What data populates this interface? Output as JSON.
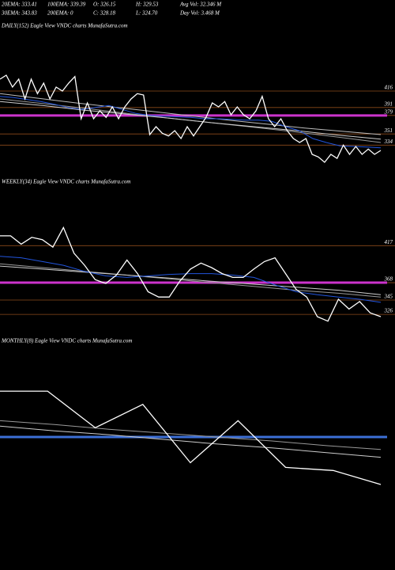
{
  "header": {
    "rows": [
      [
        "20EMA: 333.41",
        "100EMA: 339.39",
        "O: 326.15",
        "H: 329.53",
        "Avg Vol: 32.346 M"
      ],
      [
        "30EMA: 343.83",
        "200EMA: 0",
        "C: 328.18",
        "L: 324.70",
        "Day Vol: 3.468 M"
      ]
    ]
  },
  "chart_data": [
    {
      "type": "line",
      "title": "DAILY(152) Eagle  View  VNDC charts MunafaSutra.com",
      "ylim": [
        302,
        500
      ],
      "yticks": [
        416,
        391,
        379,
        351,
        334
      ],
      "tick_line_color": "#8b4a1a",
      "hlines": [
        {
          "value": 379,
          "color": "#cc33cc"
        }
      ],
      "series": [
        {
          "color": "#bbbbbb",
          "values": [
            412,
            398,
            385,
            372,
            360,
            350
          ]
        },
        {
          "color": "#999999",
          "values": [
            404,
            397,
            390,
            382,
            375,
            368,
            361,
            354,
            346,
            338
          ]
        },
        {
          "color": "#cccccc",
          "values": [
            400,
            394,
            387,
            381,
            375,
            368,
            362,
            356,
            349,
            343
          ]
        },
        {
          "color": "#2255dd",
          "values": [
            408,
            406,
            403,
            400,
            396,
            391,
            388,
            391,
            394,
            388,
            382,
            379,
            378,
            377,
            376,
            374,
            374,
            373,
            372,
            372,
            370,
            362,
            356,
            344,
            338,
            333,
            332,
            331,
            330
          ]
        },
        {
          "color": "#ffffff",
          "values": [
            434,
            440,
            422,
            434,
            404,
            434,
            412,
            428,
            404,
            422,
            416,
            428,
            438,
            374,
            398,
            374,
            386,
            376,
            392,
            374,
            392,
            404,
            412,
            410,
            350,
            362,
            352,
            348,
            356,
            344,
            362,
            348,
            362,
            376,
            398,
            392,
            400,
            380,
            392,
            380,
            374,
            386,
            408,
            374,
            362,
            374,
            356,
            344,
            338,
            344,
            320,
            316,
            308,
            320,
            314,
            334,
            320,
            332,
            320,
            328,
            320,
            326
          ]
        }
      ]
    },
    {
      "type": "line",
      "title": "WEEKLY(34) Eagle  View  VNDC charts MunafaSutra.com",
      "ylim": [
        302,
        496
      ],
      "yticks": [
        417,
        368,
        345,
        326
      ],
      "tick_line_color": "#8b4a1a",
      "hlines": [
        {
          "value": 368,
          "color": "#cc33cc"
        }
      ],
      "series": [
        {
          "color": "#999999",
          "values": [
            393,
            388,
            383,
            378,
            373,
            368,
            363,
            358,
            354,
            349
          ]
        },
        {
          "color": "#cccccc",
          "values": [
            390,
            386,
            382,
            378,
            374,
            370,
            366,
            362,
            358,
            352
          ]
        },
        {
          "color": "#2255dd",
          "values": [
            403,
            401,
            396,
            391,
            383,
            377,
            375,
            377,
            379,
            380,
            380,
            378,
            375,
            365,
            356,
            352,
            349,
            346,
            342
          ]
        },
        {
          "color": "#ffffff",
          "values": [
            430,
            430,
            419,
            428,
            425,
            415,
            441,
            407,
            391,
            372,
            367,
            378,
            398,
            380,
            356,
            349,
            349,
            370,
            386,
            394,
            388,
            380,
            375,
            375,
            386,
            396,
            401,
            380,
            359,
            349,
            323,
            317,
            346,
            333,
            343,
            328,
            323
          ]
        }
      ]
    },
    {
      "type": "line",
      "title": "MONTHLY(8) Eagle  View  VNDC charts MunafaSutra.com",
      "ylim": [
        218,
        498
      ],
      "yticks": [],
      "tick_line_color": "#8b4a1a",
      "hlines": [
        {
          "value": 389,
          "color": "#3d6fd6"
        }
      ],
      "series": [
        {
          "color": "#999999",
          "values": [
            410,
            405,
            399,
            394,
            389,
            384,
            378,
            373
          ]
        },
        {
          "color": "#cccccc",
          "values": [
            403,
            397,
            392,
            386,
            380,
            375,
            369,
            363
          ]
        },
        {
          "color": "#ffffff",
          "values": [
            448,
            448,
            401,
            431,
            356,
            410,
            350,
            346,
            328
          ]
        }
      ]
    }
  ]
}
